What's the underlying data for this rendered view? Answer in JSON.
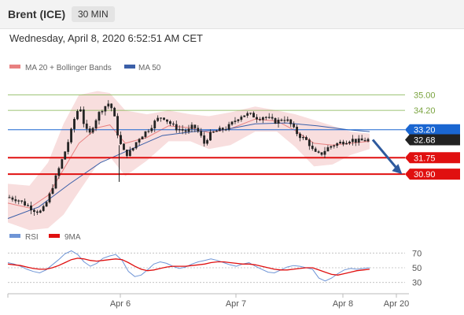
{
  "header": {
    "instrument": "Brent (ICE)",
    "timeframe": "30 MIN"
  },
  "datetime": "Wednesday, April 8, 2020 6:52:51 AM CET",
  "legend": {
    "ma_bb": "MA 20 + Bollinger Bands",
    "ma50": "MA 50",
    "rsi": "RSI",
    "rsi_ma": "9MA"
  },
  "colors": {
    "bb_band": "#f6d6d6",
    "ma20": "#e88080",
    "ma50": "#3b5fa8",
    "candle": "#222222",
    "resistance": "#7fb24a",
    "pivot": "#1a66d1",
    "support": "#e01010",
    "current": "#222222",
    "rsi": "#6f95d6",
    "rsi_ma": "#e01010",
    "arrow": "#2e5a9e"
  },
  "chart_data": [
    {
      "type": "candlestick",
      "title": "",
      "x_ticks": [
        "Apr 6",
        "Apr 7",
        "Apr 8",
        "Apr 20"
      ],
      "y_range": [
        28.5,
        36.0
      ],
      "grid": false,
      "legend_position": "top-left",
      "series": [
        {
          "name": "MA 20 + Bollinger Bands"
        },
        {
          "name": "MA 50"
        }
      ],
      "levels": [
        {
          "value": 35.0,
          "label": "35.00",
          "kind": "resistance"
        },
        {
          "value": 34.2,
          "label": "34.20",
          "kind": "resistance"
        },
        {
          "value": 33.2,
          "label": "33.20",
          "kind": "pivot"
        },
        {
          "value": 32.68,
          "label": "32.68",
          "kind": "current"
        },
        {
          "value": 31.75,
          "label": "31.75",
          "kind": "support"
        },
        {
          "value": 30.9,
          "label": "30.90",
          "kind": "support"
        }
      ],
      "close_path": [
        [
          0,
          29.7
        ],
        [
          6,
          29.6
        ],
        [
          12,
          29.3
        ],
        [
          18,
          29.0
        ],
        [
          22,
          28.95
        ],
        [
          26,
          29.6
        ],
        [
          30,
          30.5
        ],
        [
          34,
          31.4
        ],
        [
          38,
          32.3
        ],
        [
          42,
          33.4
        ],
        [
          44,
          34.1
        ],
        [
          47,
          34.3
        ],
        [
          50,
          33.2
        ],
        [
          53,
          33.0
        ],
        [
          56,
          33.6
        ],
        [
          60,
          34.2
        ],
        [
          64,
          34.5
        ],
        [
          66,
          34.6
        ],
        [
          69,
          33.8
        ],
        [
          72,
          32.6
        ],
        [
          76,
          31.9
        ],
        [
          80,
          32.1
        ],
        [
          84,
          32.7
        ],
        [
          88,
          33.0
        ],
        [
          92,
          33.3
        ],
        [
          96,
          33.7
        ],
        [
          100,
          33.9
        ],
        [
          104,
          33.6
        ],
        [
          108,
          33.3
        ],
        [
          112,
          33.2
        ],
        [
          116,
          33.1
        ],
        [
          120,
          33.4
        ],
        [
          124,
          33.0
        ],
        [
          127,
          32.5
        ],
        [
          130,
          32.9
        ],
        [
          134,
          33.1
        ],
        [
          138,
          33.2
        ],
        [
          142,
          33.3
        ],
        [
          146,
          33.6
        ],
        [
          150,
          33.9
        ],
        [
          154,
          34.0
        ],
        [
          158,
          33.95
        ],
        [
          162,
          33.8
        ],
        [
          166,
          33.9
        ],
        [
          170,
          33.7
        ],
        [
          174,
          33.6
        ],
        [
          178,
          33.8
        ],
        [
          182,
          33.6
        ],
        [
          186,
          33.1
        ],
        [
          190,
          32.8
        ],
        [
          194,
          32.6
        ],
        [
          198,
          32.0
        ],
        [
          202,
          31.9
        ],
        [
          206,
          32.2
        ],
        [
          210,
          32.4
        ],
        [
          214,
          32.5
        ],
        [
          218,
          32.6
        ],
        [
          222,
          32.7
        ],
        [
          226,
          32.6
        ],
        [
          230,
          32.65
        ],
        [
          234,
          32.68
        ]
      ],
      "ma50_path": [
        [
          0,
          28.6
        ],
        [
          20,
          29.2
        ],
        [
          40,
          30.4
        ],
        [
          60,
          31.5
        ],
        [
          80,
          32.2
        ],
        [
          100,
          32.9
        ],
        [
          120,
          33.1
        ],
        [
          140,
          33.2
        ],
        [
          160,
          33.5
        ],
        [
          180,
          33.55
        ],
        [
          200,
          33.4
        ],
        [
          220,
          33.2
        ],
        [
          234,
          33.1
        ]
      ],
      "bb_upper_path": [
        [
          0,
          30.4
        ],
        [
          14,
          30.3
        ],
        [
          26,
          31.5
        ],
        [
          36,
          33.5
        ],
        [
          46,
          35.0
        ],
        [
          58,
          35.2
        ],
        [
          66,
          35.1
        ],
        [
          76,
          34.2
        ],
        [
          90,
          34.0
        ],
        [
          104,
          34.2
        ],
        [
          118,
          34.0
        ],
        [
          130,
          33.9
        ],
        [
          144,
          34.1
        ],
        [
          160,
          34.4
        ],
        [
          174,
          34.2
        ],
        [
          186,
          34.0
        ],
        [
          198,
          33.7
        ],
        [
          210,
          33.4
        ],
        [
          222,
          33.1
        ],
        [
          234,
          33.0
        ]
      ],
      "bb_lower_path": [
        [
          0,
          28.4
        ],
        [
          14,
          28.0
        ],
        [
          26,
          28.1
        ],
        [
          36,
          28.8
        ],
        [
          46,
          30.0
        ],
        [
          58,
          31.4
        ],
        [
          66,
          31.8
        ],
        [
          76,
          30.8
        ],
        [
          90,
          31.6
        ],
        [
          104,
          32.6
        ],
        [
          118,
          32.6
        ],
        [
          130,
          32.2
        ],
        [
          144,
          32.4
        ],
        [
          160,
          33.1
        ],
        [
          174,
          33.1
        ],
        [
          186,
          32.3
        ],
        [
          198,
          31.3
        ],
        [
          210,
          31.4
        ],
        [
          222,
          31.9
        ],
        [
          234,
          32.2
        ]
      ],
      "forecast_arrow": {
        "from": [
          234,
          32.68
        ],
        "to": [
          252,
          30.9
        ]
      }
    },
    {
      "type": "line",
      "title": "",
      "y_ticks": [
        70,
        50,
        30
      ],
      "y_range": [
        20,
        80
      ],
      "legend_position": "top-left",
      "series": [
        {
          "name": "RSI",
          "values": [
            57,
            55,
            52,
            48,
            45,
            43,
            47,
            54,
            61,
            69,
            73,
            68,
            58,
            52,
            56,
            63,
            66,
            68,
            60,
            45,
            38,
            40,
            47,
            55,
            58,
            56,
            52,
            49,
            51,
            55,
            58,
            60,
            62,
            60,
            57,
            54,
            52,
            55,
            57,
            52,
            48,
            44,
            43,
            47,
            51,
            53,
            52,
            50,
            48,
            36,
            32,
            36,
            42,
            47,
            49,
            48,
            49,
            50
          ]
        },
        {
          "name": "9MA",
          "values": [
            55,
            54,
            53,
            51,
            49,
            48,
            48,
            50,
            53,
            57,
            61,
            63,
            62,
            60,
            59,
            60,
            61,
            62,
            61,
            57,
            52,
            48,
            46,
            47,
            49,
            51,
            52,
            52,
            52,
            53,
            54,
            55,
            57,
            58,
            58,
            57,
            56,
            55,
            55,
            54,
            52,
            50,
            48,
            47,
            47,
            48,
            49,
            50,
            50,
            47,
            44,
            41,
            40,
            42,
            44,
            46,
            47,
            48
          ]
        }
      ]
    }
  ]
}
